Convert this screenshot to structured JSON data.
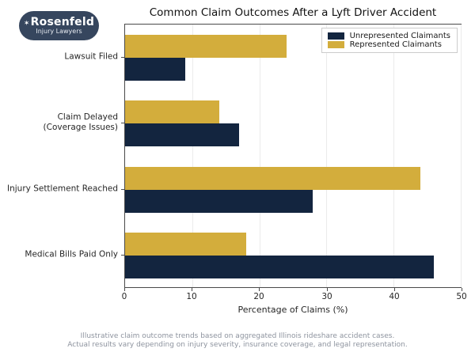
{
  "logo": {
    "name": "Rosenfeld",
    "tagline": "Injury Lawyers",
    "mark": "✶",
    "bg_color": "#36465e"
  },
  "title": "Common Claim Outcomes After a Lyft Driver Accident",
  "footer": {
    "line1": "Illustrative claim outcome trends based on aggregated Illinois rideshare accident cases.",
    "line2": "Actual results vary depending on injury severity, insurance coverage, and legal representation."
  },
  "chart_data": {
    "type": "bar",
    "orientation": "horizontal",
    "title": "Common Claim Outcomes After a Lyft Driver Accident",
    "categories": [
      "Lawsuit Filed",
      "Claim Delayed\n(Coverage Issues)",
      "Injury Settlement Reached",
      "Medical Bills Paid Only"
    ],
    "series": [
      {
        "name": "Unrepresented Claimants",
        "color": "#13253f",
        "values": [
          9,
          17,
          28,
          46
        ]
      },
      {
        "name": "Represented Claimants",
        "color": "#d3ad3c",
        "values": [
          24,
          14,
          44,
          18
        ]
      }
    ],
    "xlabel": "Percentage of Claims (%)",
    "xlim": [
      0,
      50
    ],
    "xticks": [
      0,
      10,
      20,
      30,
      40,
      50
    ],
    "grid": true,
    "legend_position": "upper right"
  }
}
